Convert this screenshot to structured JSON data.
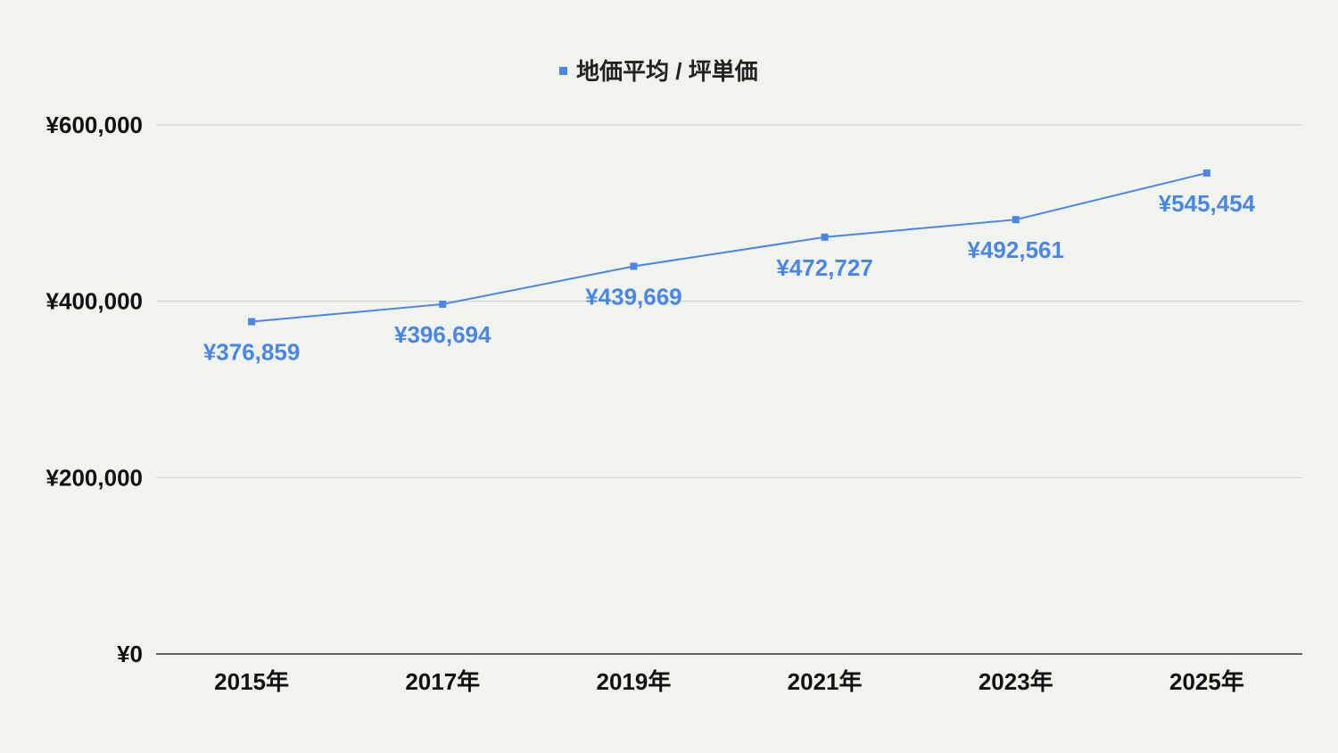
{
  "chart_data": {
    "type": "line",
    "categories": [
      "2015年",
      "2017年",
      "2019年",
      "2021年",
      "2023年",
      "2025年"
    ],
    "series": [
      {
        "name": "地価平均 / 坪単価",
        "values": [
          376859,
          396694,
          439669,
          472727,
          492561,
          545454
        ],
        "data_labels": [
          "¥376,859",
          "¥396,694",
          "¥439,669",
          "¥472,727",
          "¥492,561",
          "¥545,454"
        ]
      }
    ],
    "y_ticks": [
      0,
      200000,
      400000,
      600000
    ],
    "y_tick_labels": [
      "¥0",
      "¥200,000",
      "¥400,000",
      "¥600,000"
    ],
    "ylim": [
      0,
      600000
    ],
    "grid": true,
    "legend_position": "top-center",
    "colors": {
      "series": "#4a86e8",
      "grid": "#d0d2cd",
      "axis": "#333333",
      "background": "#f1f3ee"
    }
  }
}
